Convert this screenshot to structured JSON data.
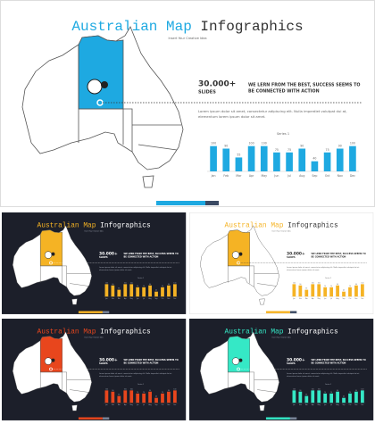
{
  "title_accent": "Australian Map",
  "title_rest": "Infographics",
  "subtitle": "Insert Your Creative Idea",
  "stat": "30.000+",
  "stat_label": "SLIDES",
  "headline": [
    "WE LERN FROM THE BEST, SUCCESS SEEMS TO",
    "BE CONNECTED WITH ACTION"
  ],
  "body": [
    "Lorem ipsum dolor sit amet, consectetur adipiscing elit. Nulla imperdiet volutpat dui at,",
    "elementum lorem ipsum dolor sit amet."
  ],
  "chart_data": {
    "type": "bar",
    "title": "Series 1",
    "categories": [
      "Jan",
      "Feb",
      "Mar",
      "Apr",
      "May",
      "Jun",
      "Jul",
      "Aug",
      "Sep",
      "Oct",
      "Nov",
      "Dec"
    ],
    "values": [
      100,
      90,
      55,
      100,
      100,
      75,
      75,
      90,
      40,
      75,
      90,
      100
    ],
    "ylim": [
      0,
      120
    ]
  },
  "themes": [
    {
      "background": "#ffffff",
      "accent": "#1ea9e1"
    },
    {
      "background": "#1c1f2a",
      "accent": "#f5b324"
    },
    {
      "background": "#ffffff",
      "accent": "#f5b324"
    },
    {
      "background": "#1c1f2a",
      "accent": "#e8461d"
    },
    {
      "background": "#1c1f2a",
      "accent": "#35e8c6"
    }
  ]
}
